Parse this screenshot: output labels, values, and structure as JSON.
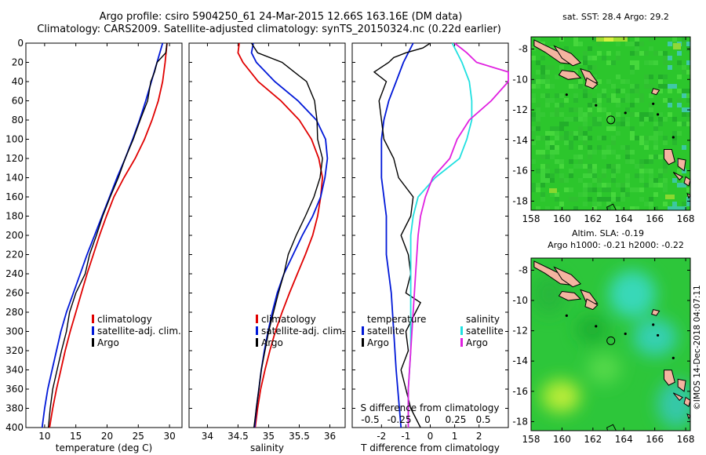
{
  "header": {
    "line1": "Argo profile: csiro 5904250_61 24-Mar-2015 12.66S 163.16E (DM data)",
    "line2": "Climatology: CARS2009. Satellite-adjusted climatology: synTS_20150324.nc (0.22d earlier)"
  },
  "watermark": "©IMOS 14-Dec-2018 04:07:11",
  "colors": {
    "climatology": "#e00000",
    "satellite": "#0018d8",
    "argo": "#000000",
    "sat_sal": "#20e0e0",
    "clim_sal": "#e020e0",
    "land": "#f4b4a0"
  },
  "chart_data": [
    {
      "type": "line",
      "panel": "temperature",
      "xlabel": "temperature (deg C)",
      "ylabel": "",
      "xlim": [
        7,
        32
      ],
      "ylim": [
        400,
        0
      ],
      "xticks": [
        10,
        15,
        20,
        25,
        30
      ],
      "yticks": [
        0,
        20,
        40,
        60,
        80,
        100,
        120,
        140,
        160,
        180,
        200,
        220,
        240,
        260,
        280,
        300,
        320,
        340,
        360,
        380,
        400
      ],
      "legend": [
        "climatology",
        "satellite-adj. clim.",
        "Argo"
      ],
      "series": [
        {
          "name": "climatology",
          "role": "clim",
          "depth": [
            0,
            20,
            40,
            60,
            80,
            100,
            120,
            140,
            160,
            180,
            200,
            220,
            240,
            260,
            280,
            300,
            320,
            340,
            360,
            380,
            400
          ],
          "values": [
            29.6,
            29.3,
            28.9,
            28.2,
            27.2,
            26.0,
            24.5,
            22.7,
            21.1,
            19.9,
            18.8,
            17.8,
            16.8,
            15.9,
            15.0,
            14.1,
            13.3,
            12.6,
            11.9,
            11.3,
            10.8
          ]
        },
        {
          "name": "satellite-adj. clim.",
          "role": "sat",
          "depth": [
            0,
            20,
            40,
            60,
            80,
            100,
            120,
            140,
            160,
            180,
            200,
            220,
            240,
            260,
            280,
            300,
            320,
            340,
            360,
            380,
            400
          ],
          "values": [
            28.9,
            28.0,
            27.1,
            26.2,
            25.2,
            24.1,
            22.9,
            21.6,
            20.4,
            19.2,
            18.0,
            16.8,
            15.7,
            14.6,
            13.5,
            12.6,
            11.9,
            11.2,
            10.5,
            10.0,
            9.6
          ]
        },
        {
          "name": "Argo",
          "role": "argo",
          "depth": [
            0,
            10,
            20,
            30,
            40,
            60,
            80,
            100,
            120,
            140,
            160,
            180,
            200,
            220,
            240,
            260,
            280,
            300,
            320,
            340,
            360,
            380,
            400
          ],
          "values": [
            29.6,
            29.4,
            28.0,
            27.6,
            27.0,
            26.5,
            25.3,
            24.2,
            22.9,
            21.8,
            20.5,
            19.3,
            18.3,
            17.2,
            16.5,
            15.0,
            14.0,
            13.5,
            12.7,
            12.0,
            11.3,
            10.9,
            10.6
          ]
        }
      ]
    },
    {
      "type": "line",
      "panel": "salinity",
      "xlabel": "salinity",
      "xlim": [
        33.7,
        36.25
      ],
      "ylim": [
        400,
        0
      ],
      "xticks": [
        34,
        34.5,
        35,
        35.5,
        36
      ],
      "yticks": [],
      "legend": [
        "climatology",
        "satellite-adj. clim.",
        "Argo"
      ],
      "series": [
        {
          "name": "climatology",
          "role": "clim",
          "depth": [
            0,
            10,
            20,
            40,
            60,
            80,
            100,
            120,
            140,
            160,
            180,
            200,
            220,
            240,
            260,
            280,
            300,
            320,
            340,
            360,
            380,
            400
          ],
          "values": [
            34.52,
            34.5,
            34.58,
            34.83,
            35.2,
            35.5,
            35.7,
            35.82,
            35.88,
            35.85,
            35.8,
            35.72,
            35.6,
            35.47,
            35.34,
            35.22,
            35.11,
            35.02,
            34.94,
            34.87,
            34.82,
            34.78
          ]
        },
        {
          "name": "satellite-adj. clim.",
          "role": "sat",
          "depth": [
            0,
            10,
            20,
            40,
            60,
            80,
            100,
            120,
            140,
            160,
            180,
            200,
            220,
            240,
            260,
            280,
            300,
            320,
            340,
            360,
            380,
            400
          ],
          "values": [
            34.75,
            34.72,
            34.8,
            35.1,
            35.48,
            35.78,
            35.93,
            35.96,
            35.92,
            35.85,
            35.72,
            35.55,
            35.4,
            35.25,
            35.14,
            35.06,
            34.99,
            34.93,
            34.88,
            34.84,
            34.8,
            34.77
          ]
        },
        {
          "name": "Argo",
          "role": "argo",
          "depth": [
            0,
            10,
            20,
            30,
            40,
            60,
            80,
            100,
            120,
            140,
            160,
            180,
            200,
            220,
            240,
            260,
            280,
            300,
            320,
            340,
            360,
            380,
            400
          ],
          "values": [
            34.72,
            34.82,
            35.22,
            35.42,
            35.62,
            35.75,
            35.79,
            35.8,
            35.88,
            35.84,
            35.74,
            35.6,
            35.45,
            35.32,
            35.25,
            35.16,
            35.08,
            35.0,
            34.94,
            34.88,
            34.84,
            34.8,
            34.76
          ]
        }
      ]
    },
    {
      "type": "line",
      "panel": "difference",
      "xlabel": "T difference from climatology",
      "xlabel_top": "S difference from climatology",
      "xlim": [
        -3.2,
        3.2
      ],
      "ylim": [
        400,
        0
      ],
      "xticks": [
        -2,
        -1,
        0,
        1,
        2
      ],
      "xticks_top": [
        "-0.5",
        "-0.25",
        "0",
        "0.25",
        "0.5"
      ],
      "legend_temperature_title": "temperature",
      "legend_salinity_title": "salinity",
      "legend_temperature": [
        "satellite",
        "Argo"
      ],
      "legend_salinity": [
        "satellite",
        "Argo"
      ],
      "series": [
        {
          "name": "T satellite",
          "role": "sat",
          "depth": [
            0,
            20,
            40,
            60,
            80,
            100,
            140,
            180,
            220,
            260,
            300,
            340,
            400
          ],
          "values": [
            -0.7,
            -1.1,
            -1.4,
            -1.7,
            -1.9,
            -2.0,
            -2.0,
            -1.8,
            -1.8,
            -1.6,
            -1.5,
            -1.4,
            -1.2
          ]
        },
        {
          "name": "T Argo",
          "role": "argo",
          "depth": [
            0,
            5,
            10,
            15,
            20,
            30,
            40,
            60,
            80,
            100,
            120,
            140,
            160,
            180,
            200,
            220,
            240,
            260,
            270,
            280,
            300,
            320,
            340,
            360,
            380,
            400
          ],
          "values": [
            0.0,
            -0.3,
            -1.0,
            -1.5,
            -1.7,
            -2.3,
            -1.8,
            -2.1,
            -2.0,
            -1.9,
            -1.5,
            -1.3,
            -0.7,
            -0.8,
            -1.2,
            -0.9,
            -0.8,
            -1.0,
            -0.4,
            -0.6,
            -1.0,
            -0.9,
            -1.2,
            -1.0,
            -0.8,
            -0.4
          ]
        },
        {
          "name": "S satellite",
          "role": "satsal",
          "depth": [
            0,
            20,
            40,
            60,
            80,
            100,
            120,
            140,
            160,
            180,
            200,
            240,
            280,
            320,
            360,
            400
          ],
          "values": [
            0.9,
            1.3,
            1.6,
            1.7,
            1.7,
            1.5,
            1.2,
            0.2,
            -0.5,
            -0.7,
            -0.8,
            -0.8,
            -0.8,
            -0.8,
            -0.9,
            -0.9
          ]
        },
        {
          "name": "S Argo",
          "role": "climsal",
          "depth": [
            0,
            10,
            20,
            30,
            40,
            60,
            80,
            100,
            120,
            140,
            160,
            180,
            200,
            240,
            280,
            320,
            360,
            400
          ],
          "values": [
            1.0,
            1.5,
            1.9,
            3.2,
            3.2,
            2.5,
            1.6,
            1.1,
            0.8,
            0.1,
            -0.2,
            -0.4,
            -0.5,
            -0.6,
            -0.7,
            -0.8,
            -0.9,
            -0.9
          ]
        }
      ]
    },
    {
      "type": "heatmap",
      "panel": "sst_map",
      "title": "sat. SST: 28.4 Argo: 29.2",
      "xlim": [
        158,
        168.3
      ],
      "ylim": [
        -18.6,
        -7.2
      ],
      "xticks": [
        158,
        160,
        162,
        164,
        166,
        168
      ],
      "yticks": [
        -8,
        -10,
        -12,
        -14,
        -16,
        -18
      ],
      "float_position": {
        "lon": 163.16,
        "lat": -12.66
      }
    },
    {
      "type": "heatmap",
      "panel": "sla_map",
      "title": "Altim. SLA: -0.19",
      "subtitle": "Argo h1000: -0.21 h2000: -0.22",
      "xlim": [
        158,
        168.3
      ],
      "ylim": [
        -18.6,
        -7.2
      ],
      "xticks": [
        158,
        160,
        162,
        164,
        166,
        168
      ],
      "yticks": [
        -8,
        -10,
        -12,
        -14,
        -16,
        -18
      ],
      "float_position": {
        "lon": 163.16,
        "lat": -12.66
      }
    }
  ]
}
